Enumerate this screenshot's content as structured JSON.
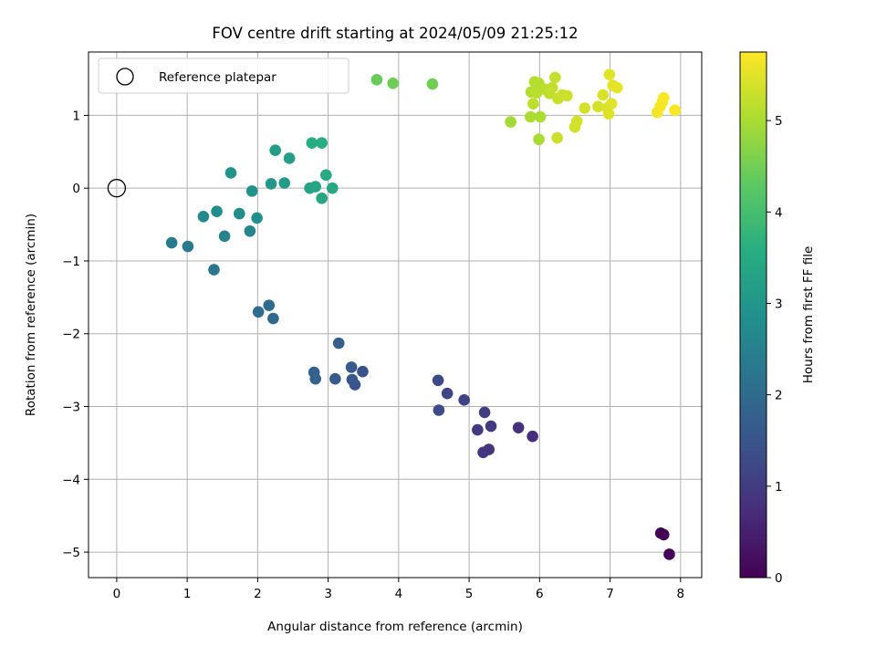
{
  "chart_data": {
    "type": "scatter",
    "title": "FOV centre drift starting at 2024/05/09 21:25:12",
    "xlabel": "Angular distance from reference (arcmin)",
    "ylabel": "Rotation from reference (arcmin)",
    "xlim": [
      -0.4,
      8.3
    ],
    "ylim": [
      -5.35,
      1.87
    ],
    "xticks": [
      0,
      1,
      2,
      3,
      4,
      5,
      6,
      7,
      8
    ],
    "yticks": [
      -5,
      -4,
      -3,
      -2,
      -1,
      0,
      1
    ],
    "grid": true,
    "legend": {
      "placement": "top-left",
      "entries": [
        "Reference platepar"
      ]
    },
    "reference_point": {
      "x": 0,
      "y": 0,
      "marker": "open-circle"
    },
    "colorbar": {
      "label": "Hours from first FF file",
      "min": 0,
      "max": 5.75,
      "ticks": [
        0,
        1,
        2,
        3,
        4,
        5
      ],
      "colormap": "viridis"
    },
    "points": [
      {
        "x": 7.72,
        "y": -4.74,
        "h": 0.0
      },
      {
        "x": 7.76,
        "y": -4.76,
        "h": 0.02
      },
      {
        "x": 7.84,
        "y": -5.03,
        "h": 0.05
      },
      {
        "x": 5.9,
        "y": -3.41,
        "h": 0.75
      },
      {
        "x": 5.7,
        "y": -3.29,
        "h": 0.8
      },
      {
        "x": 5.28,
        "y": -3.59,
        "h": 0.85
      },
      {
        "x": 5.2,
        "y": -3.63,
        "h": 0.9
      },
      {
        "x": 5.12,
        "y": -3.32,
        "h": 0.95
      },
      {
        "x": 5.31,
        "y": -3.27,
        "h": 1.0
      },
      {
        "x": 5.22,
        "y": -3.08,
        "h": 1.05
      },
      {
        "x": 4.93,
        "y": -2.91,
        "h": 1.15
      },
      {
        "x": 4.69,
        "y": -2.82,
        "h": 1.2
      },
      {
        "x": 4.56,
        "y": -2.64,
        "h": 1.25
      },
      {
        "x": 4.57,
        "y": -3.05,
        "h": 1.3
      },
      {
        "x": 3.49,
        "y": -2.52,
        "h": 1.45
      },
      {
        "x": 3.38,
        "y": -2.7,
        "h": 1.5
      },
      {
        "x": 3.34,
        "y": -2.63,
        "h": 1.55
      },
      {
        "x": 3.33,
        "y": -2.46,
        "h": 1.6
      },
      {
        "x": 3.1,
        "y": -2.62,
        "h": 1.65
      },
      {
        "x": 3.15,
        "y": -2.13,
        "h": 1.7
      },
      {
        "x": 2.8,
        "y": -2.53,
        "h": 1.75
      },
      {
        "x": 2.82,
        "y": -2.62,
        "h": 1.8
      },
      {
        "x": 2.22,
        "y": -1.79,
        "h": 1.95
      },
      {
        "x": 2.16,
        "y": -1.61,
        "h": 2.0
      },
      {
        "x": 2.01,
        "y": -1.7,
        "h": 2.05
      },
      {
        "x": 1.38,
        "y": -1.12,
        "h": 2.25
      },
      {
        "x": 1.01,
        "y": -0.8,
        "h": 2.3
      },
      {
        "x": 0.78,
        "y": -0.75,
        "h": 2.35
      },
      {
        "x": 1.53,
        "y": -0.66,
        "h": 2.55
      },
      {
        "x": 1.89,
        "y": -0.59,
        "h": 2.6
      },
      {
        "x": 1.23,
        "y": -0.39,
        "h": 2.7
      },
      {
        "x": 1.42,
        "y": -0.32,
        "h": 2.75
      },
      {
        "x": 1.74,
        "y": -0.35,
        "h": 2.8
      },
      {
        "x": 1.99,
        "y": -0.41,
        "h": 2.85
      },
      {
        "x": 1.92,
        "y": -0.04,
        "h": 2.9
      },
      {
        "x": 1.62,
        "y": 0.21,
        "h": 2.95
      },
      {
        "x": 2.19,
        "y": 0.06,
        "h": 3.05
      },
      {
        "x": 2.38,
        "y": 0.07,
        "h": 3.1
      },
      {
        "x": 2.25,
        "y": 0.52,
        "h": 3.15
      },
      {
        "x": 2.45,
        "y": 0.41,
        "h": 3.2
      },
      {
        "x": 2.74,
        "y": 0.0,
        "h": 3.3
      },
      {
        "x": 2.82,
        "y": 0.02,
        "h": 3.35
      },
      {
        "x": 2.91,
        "y": -0.14,
        "h": 3.4
      },
      {
        "x": 3.06,
        "y": 0.0,
        "h": 3.45
      },
      {
        "x": 2.97,
        "y": 0.18,
        "h": 3.5
      },
      {
        "x": 2.77,
        "y": 0.62,
        "h": 3.55
      },
      {
        "x": 2.91,
        "y": 0.62,
        "h": 3.6
      },
      {
        "x": 3.69,
        "y": 1.49,
        "h": 4.4
      },
      {
        "x": 3.92,
        "y": 1.44,
        "h": 4.45
      },
      {
        "x": 4.48,
        "y": 1.43,
        "h": 4.5
      },
      {
        "x": 5.59,
        "y": 0.91,
        "h": 4.95
      },
      {
        "x": 5.99,
        "y": 0.67,
        "h": 5.0
      },
      {
        "x": 6.01,
        "y": 0.98,
        "h": 5.02
      },
      {
        "x": 5.87,
        "y": 0.98,
        "h": 5.05
      },
      {
        "x": 5.88,
        "y": 1.32,
        "h": 5.07
      },
      {
        "x": 5.93,
        "y": 1.46,
        "h": 5.1
      },
      {
        "x": 5.99,
        "y": 1.44,
        "h": 5.12
      },
      {
        "x": 6.07,
        "y": 1.36,
        "h": 5.14
      },
      {
        "x": 5.96,
        "y": 1.31,
        "h": 5.16
      },
      {
        "x": 5.91,
        "y": 1.16,
        "h": 5.18
      },
      {
        "x": 6.14,
        "y": 1.3,
        "h": 5.2
      },
      {
        "x": 6.18,
        "y": 1.38,
        "h": 5.22
      },
      {
        "x": 6.22,
        "y": 1.52,
        "h": 5.24
      },
      {
        "x": 6.26,
        "y": 1.23,
        "h": 5.26
      },
      {
        "x": 6.32,
        "y": 1.28,
        "h": 5.28
      },
      {
        "x": 6.25,
        "y": 0.69,
        "h": 5.3
      },
      {
        "x": 6.39,
        "y": 1.27,
        "h": 5.32
      },
      {
        "x": 6.5,
        "y": 0.84,
        "h": 5.34
      },
      {
        "x": 6.53,
        "y": 0.92,
        "h": 5.36
      },
      {
        "x": 6.64,
        "y": 1.1,
        "h": 5.38
      },
      {
        "x": 6.83,
        "y": 1.12,
        "h": 5.4
      },
      {
        "x": 6.9,
        "y": 1.28,
        "h": 5.42
      },
      {
        "x": 6.96,
        "y": 1.1,
        "h": 5.44
      },
      {
        "x": 6.98,
        "y": 1.02,
        "h": 5.46
      },
      {
        "x": 7.02,
        "y": 1.16,
        "h": 5.48
      },
      {
        "x": 6.99,
        "y": 1.56,
        "h": 5.5
      },
      {
        "x": 7.04,
        "y": 1.41,
        "h": 5.52
      },
      {
        "x": 7.1,
        "y": 1.38,
        "h": 5.54
      },
      {
        "x": 7.67,
        "y": 1.04,
        "h": 5.65
      },
      {
        "x": 7.71,
        "y": 1.12,
        "h": 5.68
      },
      {
        "x": 7.74,
        "y": 1.18,
        "h": 5.7
      },
      {
        "x": 7.76,
        "y": 1.24,
        "h": 5.72
      },
      {
        "x": 7.92,
        "y": 1.07,
        "h": 5.75
      }
    ]
  }
}
